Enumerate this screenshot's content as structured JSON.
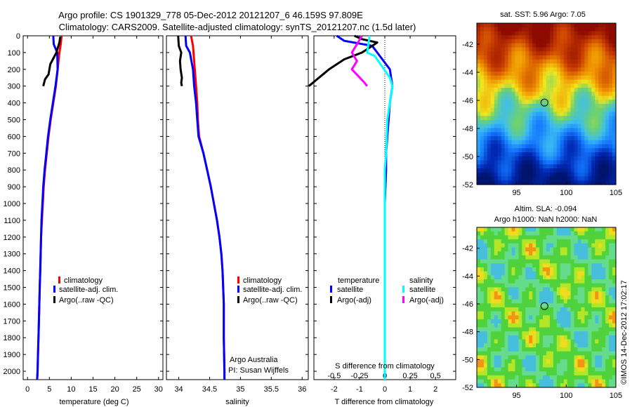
{
  "header": {
    "title_line1": "Argo profile: CS 1901329_778 05-Dec-2012 20121207_6 46.159S 97.809E",
    "title_line2": "Climatology: CARS2009. Satellite-adjusted climatology: synTS_20121207.nc (1.5d later)"
  },
  "colors": {
    "climatology": "#ff0000",
    "satellite": "#0000ff",
    "argo": "#000000",
    "satellite_salinity": "#00ffff",
    "argo_salinity": "#ff00ff"
  },
  "chart_data": [
    {
      "type": "line",
      "panel": "temperature",
      "xlabel": "temperature (deg C)",
      "xlim": [
        -1,
        31
      ],
      "xticks": [
        0,
        5,
        10,
        15,
        20,
        25,
        30
      ],
      "xtick_labels": [
        "0",
        "5",
        "10",
        "15",
        "20",
        "25",
        "30"
      ],
      "ylim": [
        2050,
        0
      ],
      "yticks": [
        0,
        100,
        200,
        300,
        400,
        500,
        600,
        700,
        800,
        900,
        1000,
        1100,
        1200,
        1300,
        1400,
        1500,
        1600,
        1700,
        1800,
        1900,
        2000
      ],
      "legend": [
        "climatology",
        "satellite-adj. clim.",
        "Argo(..raw -QC)"
      ],
      "series": [
        {
          "name": "climatology",
          "color": "#ff0000",
          "points": [
            [
              7.8,
              0
            ],
            [
              7.6,
              50
            ],
            [
              7.3,
              100
            ],
            [
              6.9,
              200
            ],
            [
              6.5,
              300
            ],
            [
              5.9,
              400
            ],
            [
              5.3,
              500
            ],
            [
              4.8,
              600
            ],
            [
              4.4,
              700
            ],
            [
              4.0,
              800
            ],
            [
              3.7,
              900
            ],
            [
              3.5,
              1000
            ],
            [
              3.3,
              1100
            ],
            [
              3.1,
              1200
            ],
            [
              3.0,
              1300
            ],
            [
              2.9,
              1400
            ],
            [
              2.8,
              1500
            ],
            [
              2.7,
              1600
            ],
            [
              2.6,
              1700
            ],
            [
              2.5,
              1800
            ],
            [
              2.4,
              1900
            ],
            [
              2.3,
              2000
            ],
            [
              2.2,
              2050
            ]
          ]
        },
        {
          "name": "satellite-adj. clim.",
          "color": "#0000ff",
          "points": [
            [
              5.9,
              0
            ],
            [
              6.0,
              50
            ],
            [
              6.8,
              100
            ],
            [
              6.9,
              200
            ],
            [
              6.4,
              300
            ],
            [
              5.8,
              400
            ],
            [
              5.2,
              500
            ],
            [
              4.7,
              600
            ],
            [
              4.3,
              700
            ],
            [
              3.9,
              800
            ],
            [
              3.6,
              900
            ],
            [
              3.4,
              1000
            ],
            [
              3.2,
              1100
            ],
            [
              3.1,
              1200
            ],
            [
              3.0,
              1300
            ],
            [
              2.9,
              1400
            ],
            [
              2.8,
              1500
            ],
            [
              2.7,
              1600
            ],
            [
              2.6,
              1700
            ],
            [
              2.5,
              1800
            ],
            [
              2.4,
              1900
            ],
            [
              2.3,
              2000
            ],
            [
              2.2,
              2050
            ]
          ]
        },
        {
          "name": "Argo(..raw -QC)",
          "color": "#000000",
          "points": [
            [
              7.5,
              5
            ],
            [
              7.3,
              40
            ],
            [
              6.6,
              100
            ],
            [
              5.8,
              140
            ],
            [
              5.2,
              170
            ],
            [
              4.8,
              230
            ],
            [
              4.0,
              260
            ],
            [
              3.6,
              300
            ]
          ]
        }
      ]
    },
    {
      "type": "line",
      "panel": "salinity",
      "xlabel": "salinity",
      "xlim": [
        33.8,
        36.1
      ],
      "xticks": [
        34,
        34.5,
        35,
        35.5,
        36
      ],
      "xtick_labels": [
        "34",
        "34.5",
        "35",
        "35.5",
        "36"
      ],
      "ylim": [
        2050,
        0
      ],
      "legend": [
        "climatology",
        "satellite-adj. clim.",
        "Argo(..raw -QC)"
      ],
      "annotations": [
        "Argo Australia",
        "PI: Susan Wijffels"
      ],
      "series": [
        {
          "name": "climatology",
          "color": "#ff0000",
          "points": [
            [
              34.2,
              0
            ],
            [
              34.23,
              60
            ],
            [
              34.25,
              150
            ],
            [
              34.27,
              250
            ],
            [
              34.28,
              300
            ],
            [
              34.3,
              400
            ],
            [
              34.31,
              500
            ],
            [
              34.33,
              600
            ],
            [
              34.4,
              700
            ],
            [
              34.46,
              800
            ],
            [
              34.52,
              900
            ],
            [
              34.57,
              1000
            ],
            [
              34.62,
              1100
            ],
            [
              34.66,
              1200
            ],
            [
              34.69,
              1300
            ],
            [
              34.71,
              1400
            ],
            [
              34.72,
              1500
            ],
            [
              34.73,
              1600
            ],
            [
              34.73,
              1800
            ],
            [
              34.74,
              2000
            ],
            [
              34.74,
              2050
            ]
          ]
        },
        {
          "name": "satellite-adj. clim.",
          "color": "#0000ff",
          "points": [
            [
              34.11,
              0
            ],
            [
              34.12,
              60
            ],
            [
              34.18,
              100
            ],
            [
              34.23,
              200
            ],
            [
              34.25,
              300
            ],
            [
              34.28,
              400
            ],
            [
              34.3,
              500
            ],
            [
              34.32,
              600
            ],
            [
              34.4,
              700
            ],
            [
              34.46,
              800
            ],
            [
              34.52,
              900
            ],
            [
              34.57,
              1000
            ],
            [
              34.62,
              1100
            ],
            [
              34.66,
              1200
            ],
            [
              34.69,
              1300
            ],
            [
              34.71,
              1400
            ],
            [
              34.72,
              1500
            ],
            [
              34.73,
              1600
            ],
            [
              34.73,
              1800
            ],
            [
              34.74,
              2000
            ],
            [
              34.74,
              2050
            ]
          ]
        },
        {
          "name": "Argo(..raw -QC)",
          "color": "#000000",
          "points": [
            [
              33.99,
              0
            ],
            [
              34.0,
              60
            ],
            [
              34.04,
              100
            ],
            [
              34.02,
              150
            ],
            [
              34.03,
              200
            ],
            [
              34.05,
              250
            ],
            [
              34.04,
              280
            ],
            [
              34.05,
              300
            ]
          ]
        }
      ]
    },
    {
      "type": "line",
      "panel": "difference",
      "xlabel": "T difference from climatology",
      "xlabel_top": "S difference from climatology",
      "xlim": [
        -2.8,
        2.8
      ],
      "xticks": [
        -2,
        -1,
        0,
        1,
        2
      ],
      "xtick_labels": [
        "-2",
        "-1",
        "0",
        "1",
        "2"
      ],
      "xticks_top": [
        -2,
        -1,
        0,
        1,
        2
      ],
      "xtick_labels_top": [
        "-0.5",
        "-0.25",
        "0",
        "0.25",
        "0.5"
      ],
      "ylim": [
        2050,
        0
      ],
      "legend_headers": [
        "temperature",
        "salinity"
      ],
      "legend": [
        "satellite",
        "Argo(-adj)",
        "satellite",
        "Argo(-adj)"
      ],
      "series": [
        {
          "name": "satellite",
          "color": "#0000ff",
          "points": [
            [
              -1.9,
              0
            ],
            [
              -1.6,
              30
            ],
            [
              -0.5,
              60
            ],
            [
              -0.3,
              100
            ],
            [
              0.2,
              200
            ],
            [
              0.3,
              300
            ],
            [
              0.2,
              400
            ],
            [
              0.15,
              500
            ],
            [
              0.1,
              600
            ],
            [
              0.05,
              700
            ],
            [
              0.05,
              800
            ],
            [
              0,
              1000
            ],
            [
              0,
              2000
            ],
            [
              0,
              2050
            ]
          ]
        },
        {
          "name": "Argo(-adj)",
          "color": "#000000",
          "points": [
            [
              -1.2,
              0
            ],
            [
              -0.9,
              20
            ],
            [
              -0.3,
              40
            ],
            [
              -0.6,
              70
            ],
            [
              -0.9,
              100
            ],
            [
              -1.6,
              140
            ],
            [
              -2.2,
              200
            ],
            [
              -3.0,
              300
            ]
          ]
        },
        {
          "name": "satellite",
          "color": "#00ffff",
          "points": [
            [
              -0.6,
              0
            ],
            [
              -0.7,
              100
            ],
            [
              -0.4,
              120
            ],
            [
              0.2,
              250
            ],
            [
              0.3,
              300
            ],
            [
              0.2,
              400
            ],
            [
              0.1,
              500
            ],
            [
              0.05,
              700
            ],
            [
              0,
              800
            ],
            [
              0,
              2050
            ]
          ]
        },
        {
          "name": "Argo(-adj)",
          "color": "#ff00ff",
          "points": [
            [
              -0.9,
              0
            ],
            [
              -1.3,
              100
            ],
            [
              -1.1,
              150
            ],
            [
              -1.3,
              200
            ],
            [
              -0.8,
              280
            ],
            [
              -0.7,
              300
            ]
          ]
        }
      ]
    },
    {
      "type": "heatmap",
      "panel": "sst-map",
      "title": "sat. SST: 5.96 Argo: 7.05",
      "xlim": [
        91,
        105
      ],
      "ylim": [
        -52,
        -40.5
      ],
      "xticks": [
        95,
        100,
        105
      ],
      "yticks": [
        -42,
        -44,
        -46,
        -48,
        -50,
        -52
      ],
      "marker": {
        "lon": 97.809,
        "lat": -46.159
      }
    },
    {
      "type": "heatmap",
      "panel": "sla-map",
      "title_line1": "Altim. SLA: -0.094",
      "title_line2": "Argo h1000: NaN h2000: NaN",
      "xlim": [
        91,
        105
      ],
      "ylim": [
        -52,
        -40.5
      ],
      "xticks": [
        95,
        100,
        105
      ],
      "yticks": [
        -42,
        -44,
        -46,
        -48,
        -50,
        -52
      ],
      "marker": {
        "lon": 97.809,
        "lat": -46.159
      }
    }
  ],
  "footer": {
    "stamp": "©IMOS 14-Dec-2012 17:02:17"
  }
}
